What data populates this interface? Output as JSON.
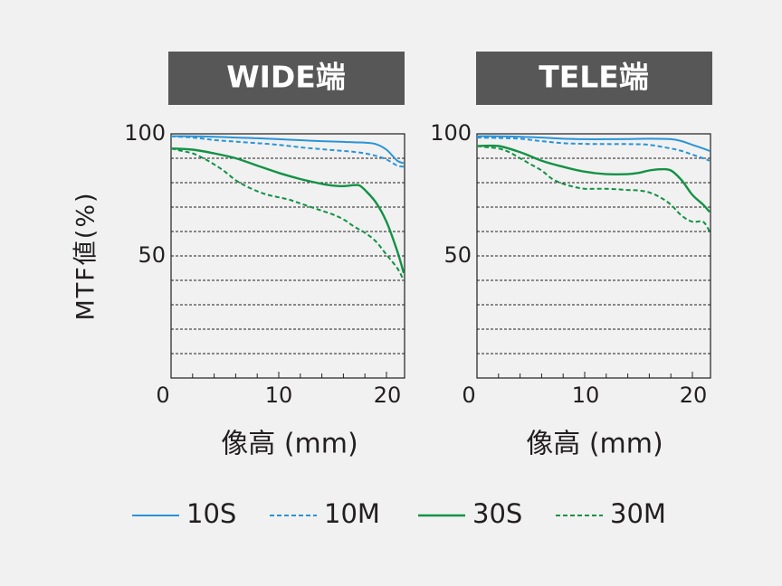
{
  "y_axis_label": "MTF値(%)",
  "x_axis_label": "像高 (mm)",
  "colors": {
    "10": "#2a94d6",
    "30": "#129245",
    "header_bg": "#575757",
    "header_text": "#ffffff"
  },
  "legend": [
    {
      "key": "10S",
      "label": "10S",
      "color": "#2a94d6",
      "style": "solid"
    },
    {
      "key": "10M",
      "label": "10M",
      "color": "#2a94d6",
      "style": "dashed"
    },
    {
      "key": "30S",
      "label": "30S",
      "color": "#129245",
      "style": "solid"
    },
    {
      "key": "30M",
      "label": "30M",
      "color": "#129245",
      "style": "dashed"
    }
  ],
  "chart_data": [
    {
      "type": "line",
      "title": "WIDE端",
      "xlabel": "像高 (mm)",
      "ylabel": "MTF値(%)",
      "xlim": [
        0,
        21.6
      ],
      "ylim": [
        0,
        100
      ],
      "xticks": [
        0,
        10,
        20
      ],
      "yticks": [
        50,
        100
      ],
      "grid": true,
      "series": [
        {
          "name": "10S",
          "x": [
            0,
            2,
            4,
            6,
            8,
            10,
            12,
            14,
            16,
            17,
            18,
            19,
            20,
            21,
            21.6
          ],
          "y": [
            99,
            99,
            98.8,
            98.5,
            98.2,
            97.8,
            97.4,
            97,
            96.7,
            96.5,
            96.4,
            95.8,
            93.5,
            89,
            88
          ]
        },
        {
          "name": "10M",
          "x": [
            0,
            2,
            4,
            6,
            8,
            10,
            12,
            14,
            16,
            17,
            18,
            19,
            20,
            21,
            21.6
          ],
          "y": [
            99,
            98.5,
            97.5,
            96.8,
            96.2,
            95.5,
            94.5,
            93.7,
            93,
            92.6,
            92,
            91,
            89.5,
            87,
            86.5
          ]
        },
        {
          "name": "30S",
          "x": [
            0,
            2,
            4,
            6,
            8,
            10,
            12,
            14,
            15,
            16,
            17,
            17.5,
            18,
            19,
            20,
            21,
            21.6
          ],
          "y": [
            94,
            93.5,
            92,
            90,
            87,
            84,
            81.5,
            79.5,
            78.8,
            78.6,
            79,
            78.8,
            77,
            72,
            64,
            52,
            43
          ]
        },
        {
          "name": "30M",
          "x": [
            0,
            1,
            2,
            3,
            4,
            5,
            6,
            7,
            8,
            9,
            10,
            11,
            12,
            13,
            14,
            15,
            16,
            17,
            18,
            19,
            20,
            21,
            21.6
          ],
          "y": [
            94,
            93,
            92,
            90,
            87.5,
            84.5,
            81,
            78.5,
            76.5,
            75,
            74,
            73,
            71.5,
            70,
            68.5,
            67,
            65,
            62,
            59.5,
            56,
            50.5,
            45,
            40
          ]
        }
      ]
    },
    {
      "type": "line",
      "title": "TELE端",
      "xlabel": "像高 (mm)",
      "ylabel": "MTF値(%)",
      "xlim": [
        0,
        21.6
      ],
      "ylim": [
        0,
        100
      ],
      "xticks": [
        0,
        10,
        20
      ],
      "yticks": [
        50,
        100
      ],
      "grid": true,
      "series": [
        {
          "name": "10S",
          "x": [
            0,
            2,
            4,
            6,
            8,
            10,
            12,
            14,
            16,
            18,
            19,
            20,
            21,
            21.6
          ],
          "y": [
            99,
            99,
            98.8,
            98.5,
            98,
            97.8,
            97.8,
            97.9,
            98,
            97.8,
            97,
            95.5,
            94,
            93
          ]
        },
        {
          "name": "10M",
          "x": [
            0,
            2,
            4,
            6,
            8,
            10,
            12,
            14,
            16,
            18,
            19,
            20,
            21,
            21.6
          ],
          "y": [
            98.5,
            98.3,
            98,
            97,
            96.2,
            95.9,
            95.8,
            95.8,
            95.5,
            94,
            93,
            91.5,
            90,
            89
          ]
        },
        {
          "name": "30S",
          "x": [
            0,
            2,
            4,
            6,
            8,
            10,
            12,
            14,
            15,
            16,
            17,
            18,
            19,
            20,
            21,
            21.6
          ],
          "y": [
            95,
            95,
            92.5,
            89,
            86.5,
            84.5,
            83.5,
            83.5,
            84,
            85,
            85.5,
            85,
            81,
            75,
            71,
            68
          ]
        },
        {
          "name": "30M",
          "x": [
            0,
            1,
            2,
            3,
            4,
            5,
            6,
            7,
            8,
            9,
            10,
            11,
            12,
            13,
            14,
            15,
            16,
            17,
            18,
            19,
            20,
            21,
            21.6
          ],
          "y": [
            95,
            94.5,
            94,
            92.5,
            90,
            87.5,
            85,
            81.5,
            79.5,
            78.3,
            77.5,
            77.5,
            77.5,
            77.3,
            77,
            76.8,
            76,
            74,
            71,
            66.5,
            64,
            64,
            60
          ]
        }
      ]
    }
  ]
}
